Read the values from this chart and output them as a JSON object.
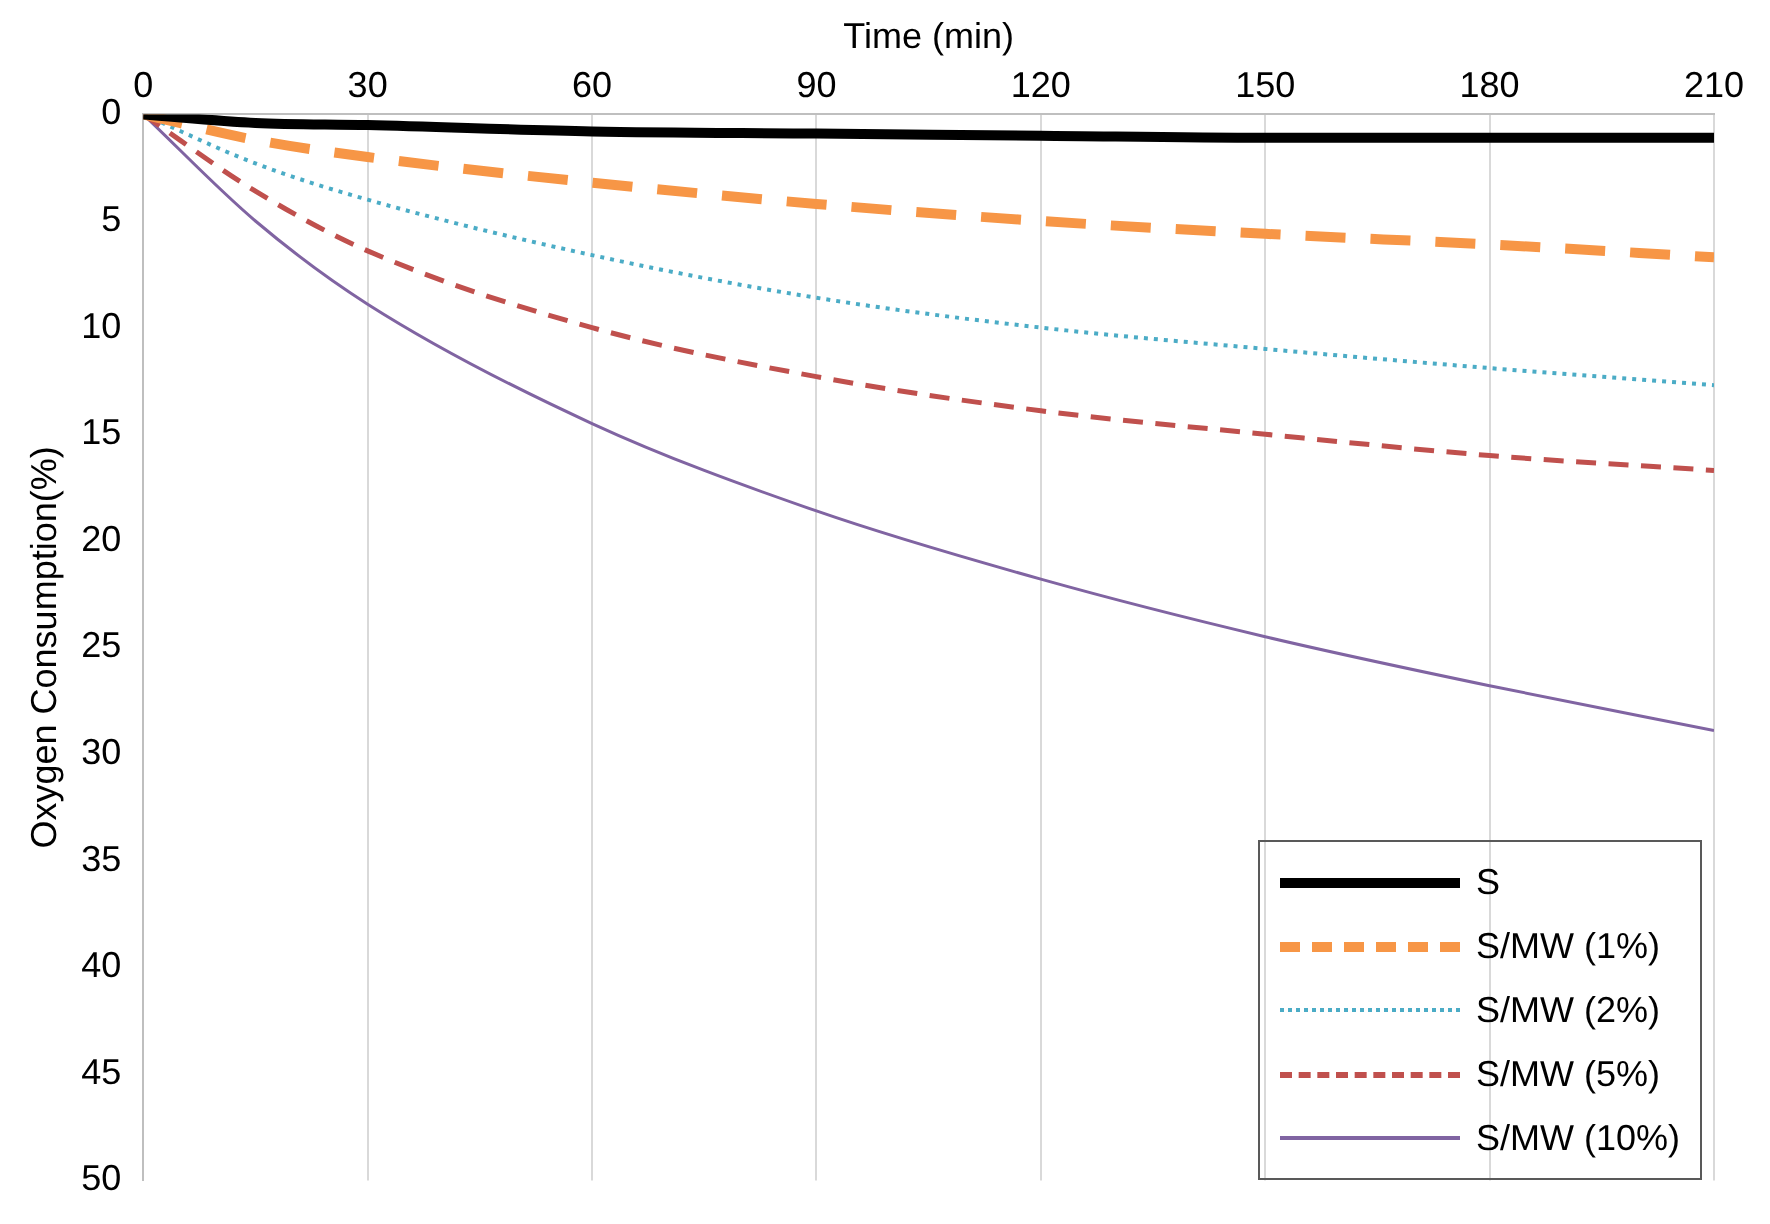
{
  "chart_data": {
    "type": "line",
    "xlabel": "Time (min)",
    "ylabel": "Oxygen Consumption(%)",
    "xlim": [
      0,
      210
    ],
    "xticks": [
      0,
      30,
      60,
      90,
      120,
      150,
      180,
      210
    ],
    "ylim": [
      50,
      0
    ],
    "yticks": [
      0,
      5,
      10,
      15,
      20,
      25,
      30,
      35,
      40,
      45,
      50
    ],
    "grid": "x",
    "legend": "bottom right",
    "marker": "none",
    "x": [
      0,
      15,
      30,
      60,
      90,
      120,
      150,
      180,
      210
    ],
    "series": [
      {
        "name": "S",
        "color": "#000000",
        "line_style": "solid",
        "values": [
          0,
          0.4,
          0.5,
          0.8,
          0.9,
          1.0,
          1.1,
          1.1,
          1.1
        ]
      },
      {
        "name": "S/MW (1%)",
        "color": "#f79646",
        "line_style": "dashed",
        "values": [
          0,
          1.2,
          2,
          3.2,
          4.2,
          5,
          5.6,
          6.1,
          6.7
        ]
      },
      {
        "name": "S/MW (2%)",
        "color": "#4bacc6",
        "line_style": "dotted",
        "values": [
          0,
          2.3,
          4,
          6.6,
          8.6,
          10,
          11,
          11.9,
          12.7
        ]
      },
      {
        "name": "S/MW (5%)",
        "color": "#c0504d",
        "line_style": "dashed",
        "values": [
          0,
          3.6,
          6.4,
          10,
          12.3,
          13.9,
          15,
          16,
          16.7
        ]
      },
      {
        "name": "S/MW (10%)",
        "color": "#8064a2",
        "line_style": "solid",
        "values": [
          0,
          5,
          8.9,
          14.5,
          18.6,
          21.8,
          24.5,
          26.8,
          28.9
        ]
      }
    ]
  }
}
